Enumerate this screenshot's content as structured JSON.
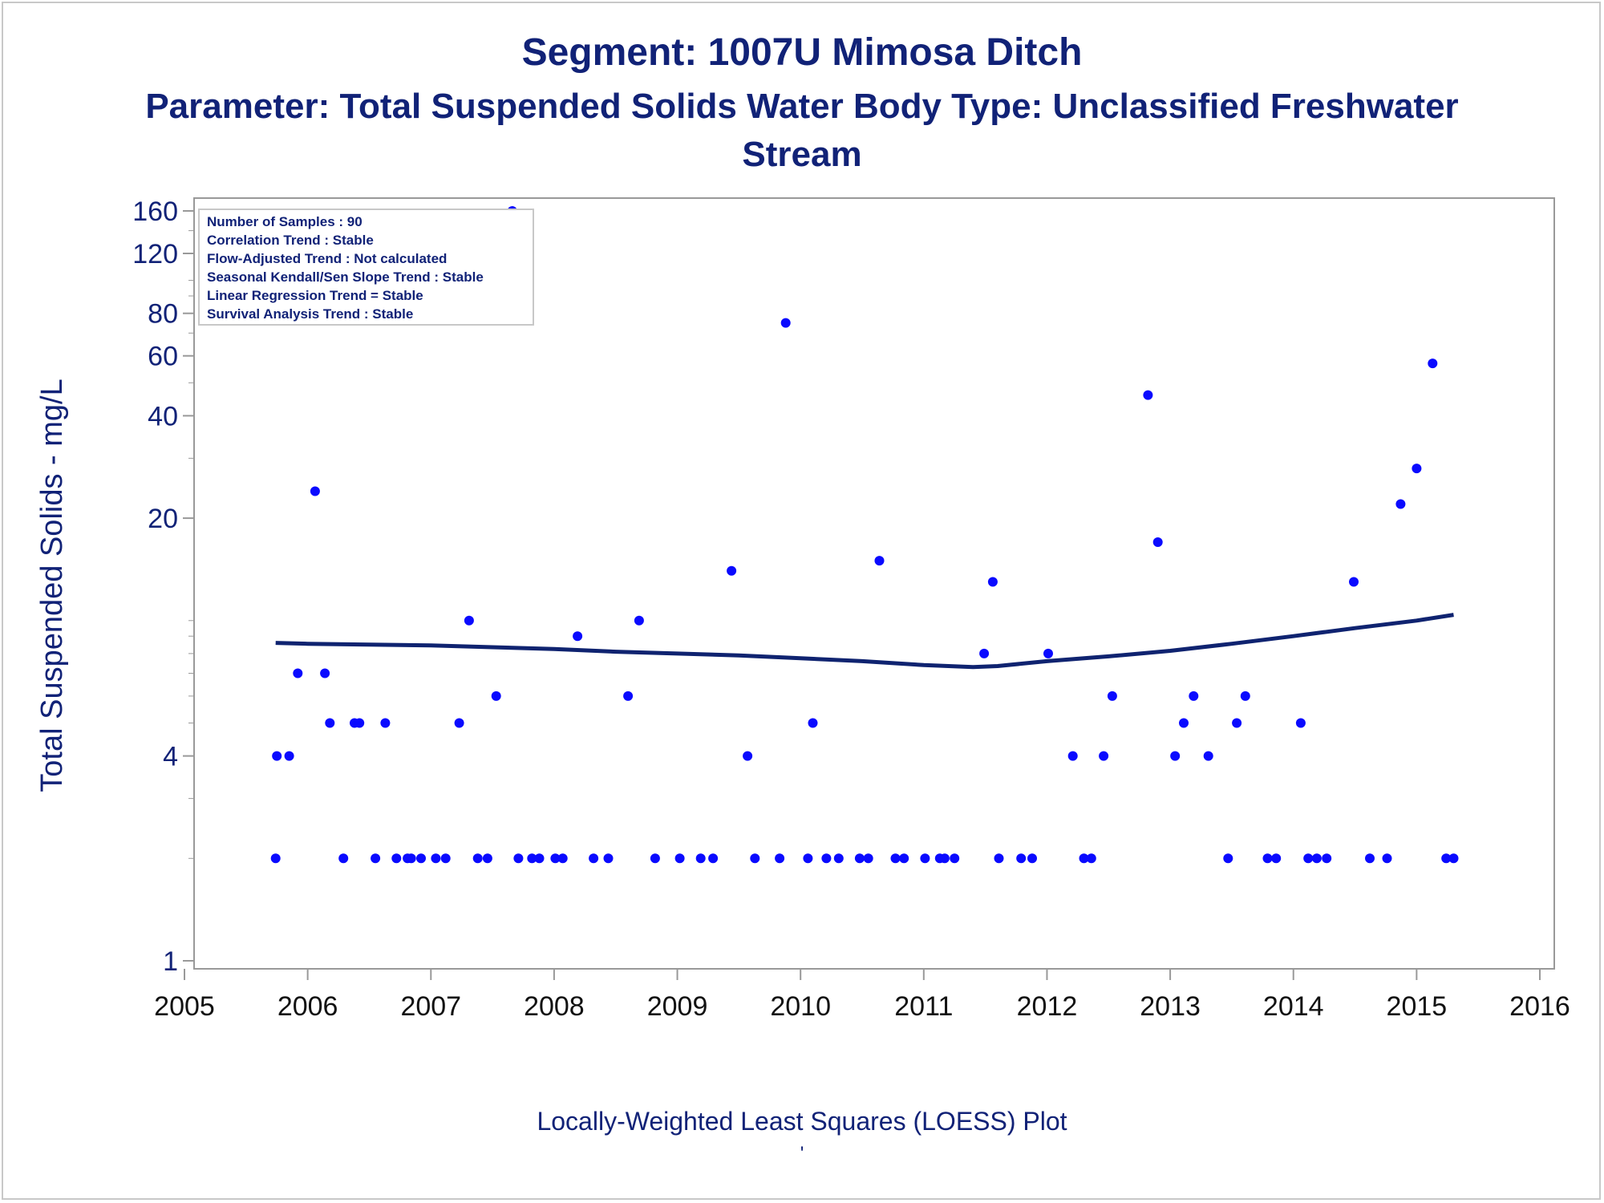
{
  "title_line1": "Segment: 1007U  Mimosa Ditch",
  "title_line2": "Parameter: Total Suspended Solids   Water Body Type: Unclassified Freshwater",
  "title_line3": "Stream",
  "footnote": "Locally-Weighted Least Squares (LOESS) Plot",
  "footnote_mark": "'",
  "colors": {
    "text": "#112277",
    "points": "#0a0aff",
    "loess": "#0f2370",
    "frame": "#999999"
  },
  "chart_data": {
    "type": "scatter",
    "ylabel": "Total Suspended Solids - mg/L",
    "xlabel": "",
    "yscale": "log",
    "xlim": [
      2005,
      2016
    ],
    "ylim": [
      1,
      175
    ],
    "xticks": [
      "2005",
      "2006",
      "2007",
      "2008",
      "2009",
      "2010",
      "2011",
      "2012",
      "2013",
      "2014",
      "2015",
      "2016"
    ],
    "yticks": [
      "1",
      "4",
      "20",
      "40",
      "60",
      "80",
      "120",
      "160"
    ],
    "grid": false,
    "stats_box": {
      "placement": "top-left",
      "lines": [
        "Number of Samples : 90",
        "Correlation Trend : Stable",
        "Flow-Adjusted Trend : Not calculated",
        "Seasonal Kendall/Sen Slope Trend : Stable",
        "Linear Regression Trend = Stable",
        "Survival Analysis Trend : Stable"
      ]
    },
    "series": [
      {
        "kind": "scatter",
        "points": [
          [
            2005.74,
            2
          ],
          [
            2005.75,
            4
          ],
          [
            2005.85,
            4
          ],
          [
            2005.92,
            7
          ],
          [
            2006.06,
            24
          ],
          [
            2006.14,
            7
          ],
          [
            2006.18,
            5
          ],
          [
            2006.29,
            2
          ],
          [
            2006.38,
            5
          ],
          [
            2006.42,
            5
          ],
          [
            2006.55,
            2
          ],
          [
            2006.63,
            5
          ],
          [
            2006.72,
            2
          ],
          [
            2006.81,
            2
          ],
          [
            2006.84,
            2
          ],
          [
            2006.92,
            2
          ],
          [
            2007.04,
            2
          ],
          [
            2007.12,
            2
          ],
          [
            2007.23,
            5
          ],
          [
            2007.31,
            10
          ],
          [
            2007.38,
            2
          ],
          [
            2007.46,
            2
          ],
          [
            2007.53,
            6
          ],
          [
            2007.66,
            160
          ],
          [
            2007.71,
            2
          ],
          [
            2007.82,
            2
          ],
          [
            2007.88,
            2
          ],
          [
            2008.01,
            2
          ],
          [
            2008.07,
            2
          ],
          [
            2008.19,
            9
          ],
          [
            2008.32,
            2
          ],
          [
            2008.44,
            2
          ],
          [
            2008.6,
            6
          ],
          [
            2008.69,
            10
          ],
          [
            2008.82,
            2
          ],
          [
            2009.02,
            2
          ],
          [
            2009.19,
            2
          ],
          [
            2009.29,
            2
          ],
          [
            2009.44,
            14
          ],
          [
            2009.57,
            4
          ],
          [
            2009.63,
            2
          ],
          [
            2009.83,
            2
          ],
          [
            2009.88,
            75
          ],
          [
            2010.06,
            2
          ],
          [
            2010.1,
            5
          ],
          [
            2010.21,
            2
          ],
          [
            2010.31,
            2
          ],
          [
            2010.48,
            2
          ],
          [
            2010.55,
            2
          ],
          [
            2010.64,
            15
          ],
          [
            2010.77,
            2
          ],
          [
            2010.84,
            2
          ],
          [
            2011.01,
            2
          ],
          [
            2011.13,
            2
          ],
          [
            2011.17,
            2
          ],
          [
            2011.25,
            2
          ],
          [
            2011.49,
            8
          ],
          [
            2011.56,
            13
          ],
          [
            2011.61,
            2
          ],
          [
            2011.79,
            2
          ],
          [
            2011.88,
            2
          ],
          [
            2012.01,
            8
          ],
          [
            2012.21,
            4
          ],
          [
            2012.3,
            2
          ],
          [
            2012.36,
            2
          ],
          [
            2012.46,
            4
          ],
          [
            2012.53,
            6
          ],
          [
            2012.82,
            46
          ],
          [
            2012.9,
            17
          ],
          [
            2013.04,
            4
          ],
          [
            2013.11,
            5
          ],
          [
            2013.19,
            6
          ],
          [
            2013.31,
            4
          ],
          [
            2013.47,
            2
          ],
          [
            2013.54,
            5
          ],
          [
            2013.61,
            6
          ],
          [
            2013.79,
            2
          ],
          [
            2013.86,
            2
          ],
          [
            2014.06,
            5
          ],
          [
            2014.12,
            2
          ],
          [
            2014.19,
            2
          ],
          [
            2014.27,
            2
          ],
          [
            2014.49,
            13
          ],
          [
            2014.62,
            2
          ],
          [
            2014.76,
            2
          ],
          [
            2014.87,
            22
          ],
          [
            2015.0,
            28
          ],
          [
            2015.13,
            57
          ],
          [
            2015.24,
            2
          ],
          [
            2015.3,
            2
          ]
        ]
      },
      {
        "kind": "line",
        "points": [
          [
            2005.74,
            8.6
          ],
          [
            2006.0,
            8.55
          ],
          [
            2006.5,
            8.5
          ],
          [
            2007.0,
            8.45
          ],
          [
            2007.5,
            8.35
          ],
          [
            2008.0,
            8.25
          ],
          [
            2008.5,
            8.1
          ],
          [
            2009.0,
            8.0
          ],
          [
            2009.5,
            7.9
          ],
          [
            2010.0,
            7.75
          ],
          [
            2010.5,
            7.6
          ],
          [
            2011.0,
            7.4
          ],
          [
            2011.4,
            7.3
          ],
          [
            2011.6,
            7.35
          ],
          [
            2012.0,
            7.6
          ],
          [
            2012.5,
            7.85
          ],
          [
            2013.0,
            8.15
          ],
          [
            2013.5,
            8.55
          ],
          [
            2014.0,
            9.0
          ],
          [
            2014.5,
            9.5
          ],
          [
            2015.0,
            10.0
          ],
          [
            2015.3,
            10.4
          ]
        ]
      }
    ]
  }
}
